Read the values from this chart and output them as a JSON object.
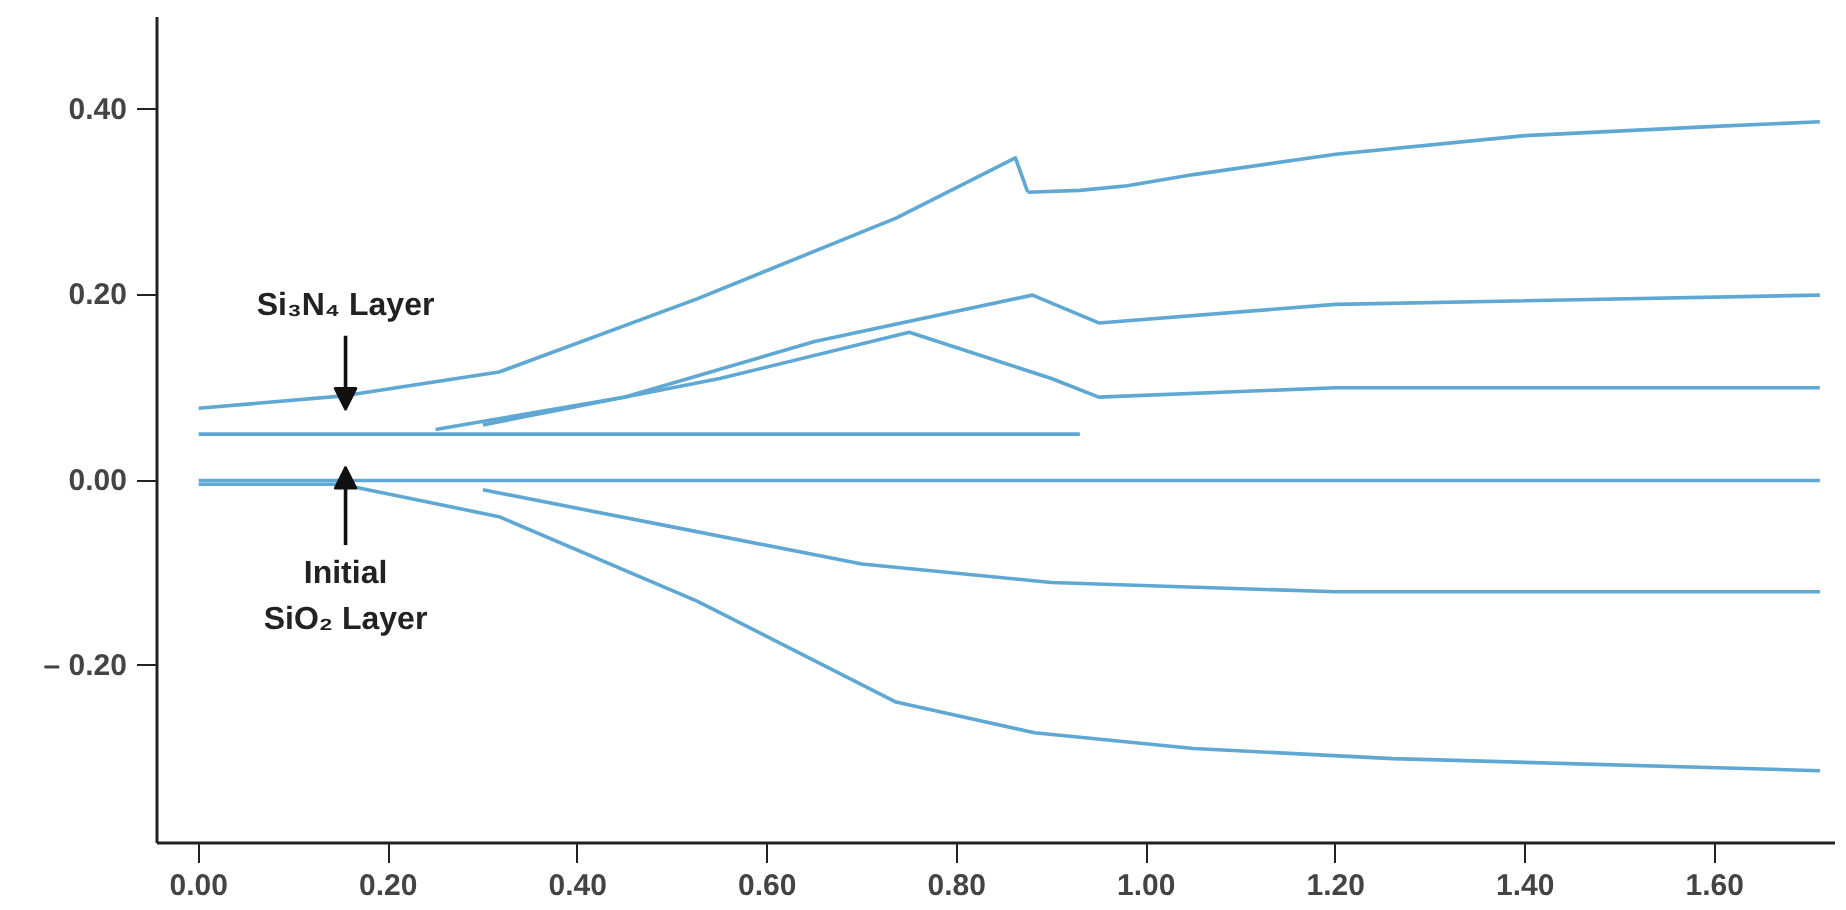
{
  "chart_data": {
    "type": "line",
    "xlim": [
      -0.044,
      1.727
    ],
    "ylim": [
      -0.391,
      0.5
    ],
    "xticks": [
      {
        "value": 0,
        "label": "0.00"
      },
      {
        "value": 0.2,
        "label": "0.20"
      },
      {
        "value": 0.4,
        "label": "0.40"
      },
      {
        "value": 0.6,
        "label": "0.60"
      },
      {
        "value": 0.8,
        "label": "0.80"
      },
      {
        "value": 1.0,
        "label": "1.00"
      },
      {
        "value": 1.2,
        "label": "1.20"
      },
      {
        "value": 1.4,
        "label": "1.40"
      },
      {
        "value": 1.6,
        "label": "1.60"
      }
    ],
    "yticks": [
      {
        "value": -0.2,
        "label": "– 0.20"
      },
      {
        "value": 0,
        "label": "0.00"
      },
      {
        "value": 0.2,
        "label": "0.20"
      },
      {
        "value": 0.4,
        "label": "0.40"
      }
    ],
    "grid": false,
    "marker": "none",
    "line_style": "solid",
    "series": [
      {
        "color": "#5fa8d3",
        "x": [
          0,
          0.15,
          0.317,
          0.526,
          0.736,
          0.862,
          0.875
        ],
        "values": [
          0.078,
          0.091,
          0.117,
          0.196,
          0.283,
          0.348,
          0.311
        ]
      },
      {
        "color": "#5fa8d3",
        "x": [
          0.875,
          0.93,
          0.98,
          1.05,
          1.2,
          1.4,
          1.6,
          1.711
        ],
        "values": [
          0.311,
          0.313,
          0.318,
          0.33,
          0.352,
          0.372,
          0.382,
          0.387
        ]
      },
      {
        "color": "#5fa8d3",
        "x": [
          0,
          0.3,
          0.6,
          0.93
        ],
        "values": [
          0.05,
          0.05,
          0.05,
          0.05
        ]
      },
      {
        "color": "#5fa8d3",
        "x": [
          0.25,
          0.45,
          0.65,
          0.88,
          0.95,
          1.2,
          1.711
        ],
        "values": [
          0.055,
          0.09,
          0.15,
          0.2,
          0.17,
          0.19,
          0.2
        ]
      },
      {
        "color": "#5fa8d3",
        "x": [
          0.3,
          0.55,
          0.75,
          0.9,
          0.95,
          1.2,
          1.711
        ],
        "values": [
          0.06,
          0.11,
          0.16,
          0.11,
          0.09,
          0.1,
          0.1
        ]
      },
      {
        "color": "#5fa8d3",
        "x": [
          0,
          0.5,
          1.0,
          1.711
        ],
        "values": [
          0,
          0,
          0,
          0
        ]
      },
      {
        "color": "#5fa8d3",
        "x": [
          0.3,
          0.5,
          0.7,
          0.9,
          1.2,
          1.711
        ],
        "values": [
          -0.01,
          -0.05,
          -0.09,
          -0.11,
          -0.12,
          -0.12
        ]
      },
      {
        "color": "#5fa8d3",
        "x": [
          0,
          0.15,
          0.317,
          0.526,
          0.736,
          0.882,
          1.05,
          1.26,
          1.711
        ],
        "values": [
          -0.004,
          -0.004,
          -0.039,
          -0.13,
          -0.239,
          -0.272,
          -0.289,
          -0.3,
          -0.313
        ]
      }
    ],
    "annotations": [
      {
        "text": "Si₃N₄ Layer",
        "x": 0.155,
        "y": 0.076
      },
      {
        "text": "Initial\nSiO₂ Layer",
        "x": 0.155,
        "y": 0.015
      }
    ]
  }
}
